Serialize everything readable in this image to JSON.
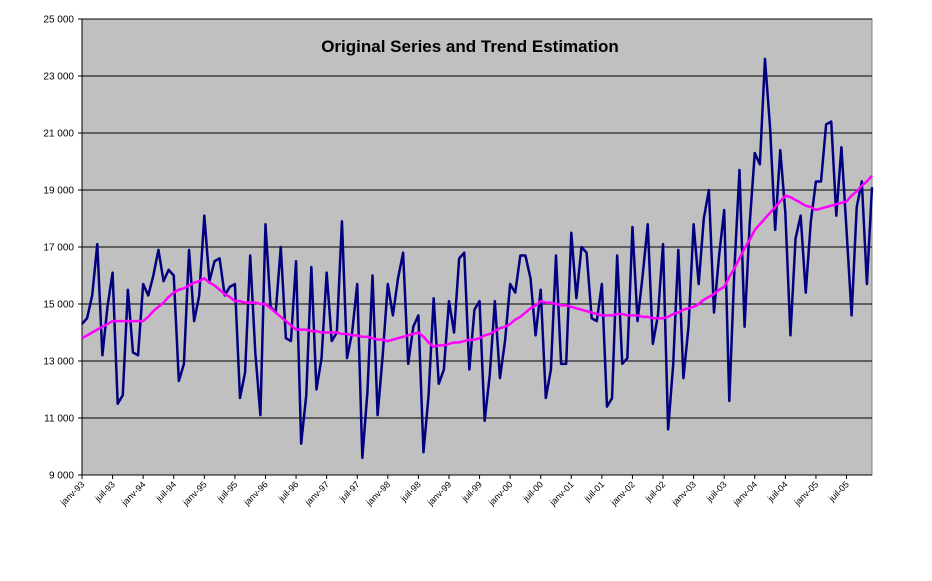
{
  "chart_data": {
    "type": "line",
    "title": "Original Series and Trend Estimation",
    "categories": [
      "janv-93",
      null,
      null,
      null,
      null,
      null,
      "juil-93",
      null,
      null,
      null,
      null,
      null,
      "janv-94",
      null,
      null,
      null,
      null,
      null,
      "juil-94",
      null,
      null,
      null,
      null,
      null,
      "janv-95",
      null,
      null,
      null,
      null,
      null,
      "juil-95",
      null,
      null,
      null,
      null,
      null,
      "janv-96",
      null,
      null,
      null,
      null,
      null,
      "juil-96",
      null,
      null,
      null,
      null,
      null,
      "janv-97",
      null,
      null,
      null,
      null,
      null,
      "juil-97",
      null,
      null,
      null,
      null,
      null,
      "janv-98",
      null,
      null,
      null,
      null,
      null,
      "juil-98",
      null,
      null,
      null,
      null,
      null,
      "janv-99",
      null,
      null,
      null,
      null,
      null,
      "juil-99",
      null,
      null,
      null,
      null,
      null,
      "janv-00",
      null,
      null,
      null,
      null,
      null,
      "juil-00",
      null,
      null,
      null,
      null,
      null,
      "janv-01",
      null,
      null,
      null,
      null,
      null,
      "juil-01",
      null,
      null,
      null,
      null,
      null,
      "janv-02",
      null,
      null,
      null,
      null,
      null,
      "juil-02",
      null,
      null,
      null,
      null,
      null,
      "janv-03",
      null,
      null,
      null,
      null,
      null,
      "juil-03",
      null,
      null,
      null,
      null,
      null,
      "janv-04",
      null,
      null,
      null,
      null,
      null,
      "juil-04",
      null,
      null,
      null,
      null,
      null,
      "janv-05",
      null,
      null,
      null,
      null,
      null,
      "juil-05",
      null,
      null,
      null,
      null,
      null
    ],
    "series": [
      {
        "color": "#000080",
        "values": [
          14300,
          14500,
          15300,
          17100,
          13200,
          14900,
          16100,
          11500,
          11800,
          15500,
          13300,
          13200,
          15700,
          15300,
          16000,
          16900,
          15800,
          16200,
          16000,
          12300,
          12900,
          16900,
          14400,
          15300,
          18100,
          15800,
          16500,
          16600,
          15300,
          15600,
          15700,
          11700,
          12600,
          16700,
          13300,
          11100,
          17800,
          14900,
          14700,
          17000,
          13800,
          13700,
          16500,
          10100,
          11800,
          16300,
          12000,
          13100,
          16100,
          13700,
          14000,
          17900,
          13100,
          14000,
          15700,
          9600,
          11900,
          16000,
          11100,
          13200,
          15700,
          14600,
          15900,
          16800,
          12900,
          14200,
          14600,
          9800,
          11800,
          15200,
          12200,
          12700,
          15100,
          14000,
          16600,
          16800,
          12700,
          14800,
          15100,
          10900,
          12500,
          15100,
          12400,
          13700,
          15700,
          15400,
          16700,
          16700,
          15900,
          13900,
          15500,
          11700,
          12700,
          16700,
          12900,
          12900,
          17500,
          15200,
          17000,
          16800,
          14500,
          14400,
          15700,
          11400,
          11700,
          16700,
          12900,
          13100,
          17700,
          14400,
          16000,
          17800,
          13600,
          14600,
          17100,
          10600,
          12900,
          16900,
          12400,
          14200,
          17800,
          15700,
          18000,
          19000,
          14700,
          16700,
          18300,
          11600,
          16200,
          19700,
          14200,
          17800,
          20300,
          19900,
          23600,
          21200,
          17600,
          20400,
          18200,
          13900,
          17300,
          18100,
          15400,
          17900,
          19300,
          19300,
          21300,
          21400,
          18100,
          20500,
          17600,
          14600,
          18400,
          19300,
          15700,
          19100
        ]
      },
      {
        "color": "#ff00ff",
        "values": [
          13800,
          13900,
          14000,
          14100,
          14200,
          14300,
          14400,
          14400,
          14400,
          14400,
          14400,
          14400,
          14400,
          14550,
          14750,
          14900,
          15050,
          15250,
          15400,
          15500,
          15550,
          15650,
          15750,
          15800,
          15900,
          15750,
          15650,
          15500,
          15350,
          15250,
          15100,
          15100,
          15050,
          15050,
          15050,
          15000,
          15000,
          14850,
          14700,
          14550,
          14400,
          14250,
          14100,
          14100,
          14100,
          14050,
          14050,
          14000,
          14000,
          14000,
          14000,
          13950,
          13950,
          13900,
          13900,
          13850,
          13850,
          13800,
          13750,
          13750,
          13700,
          13750,
          13800,
          13850,
          13900,
          13950,
          14000,
          13850,
          13650,
          13500,
          13550,
          13550,
          13600,
          13650,
          13650,
          13700,
          13750,
          13750,
          13800,
          13900,
          13950,
          14050,
          14150,
          14200,
          14300,
          14450,
          14550,
          14700,
          14850,
          14950,
          15100,
          15050,
          15050,
          15000,
          14950,
          14950,
          14900,
          14850,
          14800,
          14750,
          14700,
          14650,
          14600,
          14600,
          14600,
          14650,
          14650,
          14600,
          14600,
          14600,
          14550,
          14550,
          14500,
          14500,
          14500,
          14550,
          14650,
          14700,
          14800,
          14850,
          14900,
          15000,
          15150,
          15250,
          15350,
          15500,
          15600,
          15950,
          16250,
          16600,
          16950,
          17250,
          17600,
          17800,
          18000,
          18200,
          18400,
          18600,
          18800,
          18750,
          18650,
          18550,
          18450,
          18400,
          18300,
          18350,
          18400,
          18450,
          18500,
          18550,
          18600,
          18800,
          18950,
          19150,
          19300,
          19500
        ]
      }
    ],
    "ylim": [
      9000,
      25000
    ],
    "yticks": [
      {
        "value": 9000,
        "label": "9 000"
      },
      {
        "value": 11000,
        "label": "11 000"
      },
      {
        "value": 13000,
        "label": "13 000"
      },
      {
        "value": 15000,
        "label": "15 000"
      },
      {
        "value": 17000,
        "label": "17 000"
      },
      {
        "value": 19000,
        "label": "19 000"
      },
      {
        "value": 21000,
        "label": "21 000"
      },
      {
        "value": 23000,
        "label": "23 000"
      },
      {
        "value": 25000,
        "label": "25 000"
      }
    ],
    "grid": true
  }
}
